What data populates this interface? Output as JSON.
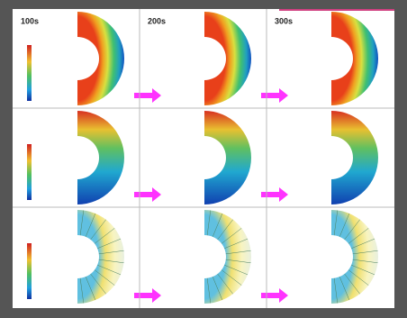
{
  "figure": {
    "time_labels": [
      "100s",
      "200s",
      "300s"
    ]
  }
}
